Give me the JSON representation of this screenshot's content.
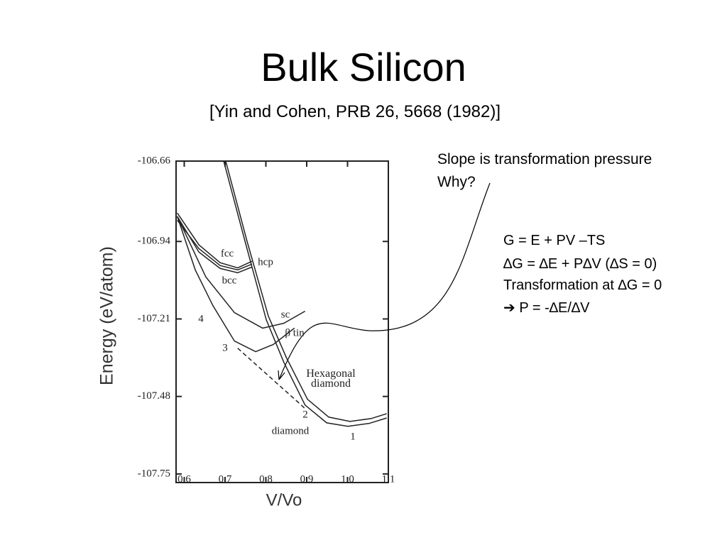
{
  "slide": {
    "title": "Bulk Silicon",
    "subtitle": "[Yin and Cohen, PRB 26, 5668 (1982)]",
    "notes": [
      "Slope is transformation pressure",
      "Why?"
    ],
    "equations": [
      "G = E + PV –TS",
      "∆G = ∆E + P∆V (∆S = 0)",
      "Transformation at ∆G = 0",
      "➔ P = -∆E/∆V"
    ]
  },
  "chart_data": {
    "type": "line",
    "xlabel": "V/Vo",
    "ylabel": "Energy (eV/atom)",
    "xlim": [
      0.58,
      1.1
    ],
    "ylim": [
      -107.78,
      -106.66
    ],
    "xticks": [
      0.6,
      0.7,
      0.8,
      0.9,
      {
        "value": 1,
        "label": "1.0"
      },
      1.1
    ],
    "yticks": [
      -106.66,
      -106.94,
      -107.21,
      -107.48,
      -107.75
    ],
    "color": "#222222",
    "series": [
      {
        "name": "fcc",
        "x": [
          0.583,
          0.636,
          0.688,
          0.731,
          0.766
        ],
        "values": [
          -106.841,
          -106.952,
          -107.014,
          -107.032,
          -107.009
        ]
      },
      {
        "name": "hcp",
        "x": [
          0.583,
          0.636,
          0.688,
          0.731,
          0.766
        ],
        "values": [
          -106.866,
          -106.965,
          -107.024,
          -107.039,
          -107.019
        ]
      },
      {
        "name": "bcc",
        "x": [
          0.583,
          0.636,
          0.688,
          0.731,
          0.766
        ],
        "values": [
          -106.853,
          -106.977,
          -107.034,
          -107.049,
          -107.029
        ]
      },
      {
        "name": "sc",
        "x": [
          0.583,
          0.653,
          0.723,
          0.792,
          0.844,
          0.896
        ],
        "values": [
          -106.853,
          -107.064,
          -107.188,
          -107.242,
          -107.225,
          -107.183
        ]
      },
      {
        "name": "β tin",
        "x": [
          0.583,
          0.627,
          0.67,
          0.723,
          0.775,
          0.818,
          0.87
        ],
        "values": [
          -106.853,
          -107.039,
          -107.163,
          -107.287,
          -107.324,
          -107.299,
          -107.242
        ]
      },
      {
        "name": "Hexagonal diamond",
        "x": [
          0.702,
          0.754,
          0.806,
          0.85,
          0.902,
          0.954,
          1.006,
          1.058,
          1.096
        ],
        "values": [
          -106.662,
          -106.94,
          -107.2,
          -107.344,
          -107.49,
          -107.552,
          -107.567,
          -107.557,
          -107.54
        ]
      },
      {
        "name": "diamond",
        "x": [
          0.697,
          0.749,
          0.801,
          0.844,
          0.896,
          0.949,
          1.001,
          1.053,
          1.096
        ],
        "values": [
          -106.662,
          -106.94,
          -107.213,
          -107.361,
          -107.51,
          -107.572,
          -107.584,
          -107.574,
          -107.555
        ]
      },
      {
        "style": "dashed",
        "x": [
          0.731,
          0.896
        ],
        "values": [
          -107.312,
          -107.522
        ]
      }
    ],
    "annotations": [
      "4",
      "3",
      "2",
      "1"
    ]
  }
}
